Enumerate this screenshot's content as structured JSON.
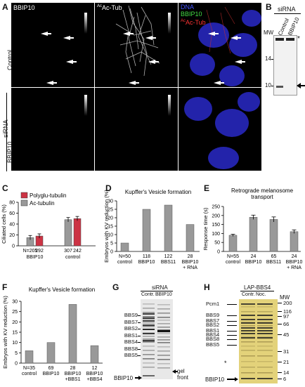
{
  "panels": {
    "A": {
      "letter": "A",
      "channels": [
        "BBIP10",
        "Ac-Tub",
        "DNA",
        "BBIP10",
        "Ac-Tub"
      ],
      "channel_colors": {
        "dna": "#4455ff",
        "bbip10": "#44dd44",
        "tub": "#ff3333"
      },
      "row_labels": [
        "Control",
        "BBIP10"
      ],
      "group_label": "siRNA",
      "ac_prefix": "Ac"
    },
    "B": {
      "letter": "B",
      "header": "siRNA",
      "lanes": [
        "Control",
        "BBIP10"
      ],
      "mw_label": "MW",
      "mw_marks": [
        "14",
        "10"
      ],
      "asterisk": "*"
    },
    "C": {
      "letter": "C",
      "chart_data": {
        "type": "bar",
        "ylabel": "Ciliated cells (%)",
        "ylim": [
          0,
          80
        ],
        "yticks": [
          0,
          20,
          40,
          60,
          80
        ],
        "series": [
          {
            "name": "Polyglu-tubulin",
            "color": "#cc3344",
            "values": [
              18,
              50
            ]
          },
          {
            "name": "Ac-tubulin",
            "color": "#999999",
            "values": [
              15,
              48
            ]
          }
        ],
        "groups": [
          "BBIP10",
          "control"
        ],
        "n_label": "N=",
        "n_values": [
          "205",
          "292",
          "307",
          "242"
        ]
      }
    },
    "D": {
      "letter": "D",
      "chart_data": {
        "type": "bar",
        "title": "Kupffer's Vesicle formation",
        "ylabel": "Embryos with KV reduction (%)",
        "ylim": [
          0,
          30
        ],
        "yticks": [
          0,
          5,
          10,
          15,
          20,
          25,
          30
        ],
        "categories": [
          "control",
          "BBIP10",
          "BBS11",
          "BBIP10\n+ RNA"
        ],
        "values": [
          5,
          25,
          27.5,
          16
        ],
        "n_values": [
          "N=50",
          "118",
          "122",
          "28"
        ]
      }
    },
    "E": {
      "letter": "E",
      "chart_data": {
        "type": "bar",
        "title": "Retrograde melanosome\ntransport",
        "ylabel": "Response time (s)",
        "ylim": [
          0,
          250
        ],
        "yticks": [
          0,
          50,
          100,
          150,
          200,
          250
        ],
        "categories": [
          "control",
          "BBIP10",
          "BBS11",
          "BBIP10\n+ RNA"
        ],
        "values": [
          90,
          190,
          178,
          110
        ],
        "errors": [
          6,
          12,
          14,
          10
        ],
        "n_values": [
          "N=55",
          "24",
          "65",
          "24"
        ]
      }
    },
    "F": {
      "letter": "F",
      "chart_data": {
        "type": "bar",
        "title": "Kupffer's Vesicle formation",
        "ylabel": "Embryos with KV reduction (%)",
        "ylim": [
          0,
          30
        ],
        "yticks": [
          0,
          5,
          10,
          15,
          20,
          25,
          30
        ],
        "categories": [
          "control",
          "BBIP10",
          "BBIP10\n+BBS1",
          "BBIP10\n+BBS4"
        ],
        "values": [
          6,
          10,
          28.5,
          8.5
        ],
        "n_values": [
          "N=35",
          "69",
          "28",
          "12"
        ]
      }
    },
    "G": {
      "letter": "G",
      "header": "siRNA",
      "lanes": [
        "Contr.",
        "BBIP10"
      ],
      "band_labels": [
        "BBS9",
        "BBS7",
        "BBS2",
        "BBS1",
        "BBS4",
        "BBS8",
        "BBS5"
      ],
      "bottom_label": "BBIP10",
      "gel_front": "gel\nfront"
    },
    "H": {
      "letter": "H",
      "header": "LAP-BBS4",
      "lanes": [
        "Contr.",
        "Noc."
      ],
      "mw_label": "MW",
      "mw_values": [
        "200",
        "116",
        "97",
        "66",
        "45",
        "31",
        "21",
        "14",
        "6"
      ],
      "band_labels": [
        "Pcm1",
        "BBS9",
        "BBS7",
        "BBS2",
        "BBS1",
        "BBS4",
        "BBS8",
        "BBS5"
      ],
      "bottom_label": "BBIP10",
      "asterisk": "*"
    }
  }
}
